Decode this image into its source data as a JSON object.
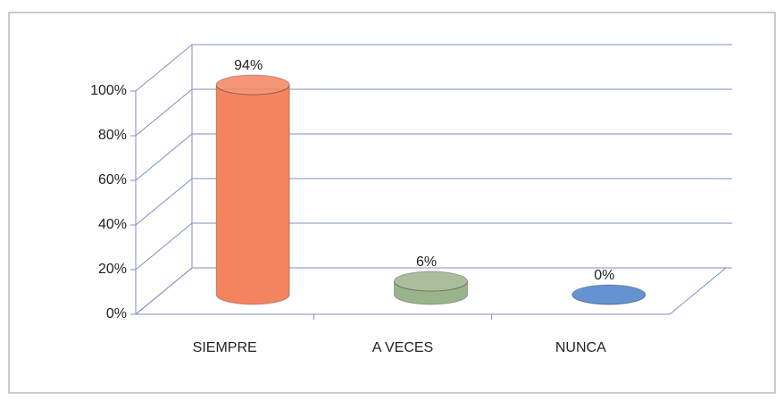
{
  "chart_data": {
    "type": "bar3d",
    "categories": [
      "SIEMPRE",
      "A VECES",
      "NUNCA"
    ],
    "values": [
      94,
      6,
      0
    ],
    "value_labels": [
      "94%",
      "6%",
      "0%"
    ],
    "colors": [
      "#f4845f",
      "#9bb38a",
      "#4a7fc9"
    ],
    "ylim": [
      0,
      100
    ],
    "yticks": [
      {
        "value": 0,
        "label": "0%"
      },
      {
        "value": 20,
        "label": "20%"
      },
      {
        "value": 40,
        "label": "40%"
      },
      {
        "value": 60,
        "label": "60%"
      },
      {
        "value": 80,
        "label": "80%"
      },
      {
        "value": 100,
        "label": "100%"
      }
    ],
    "grid": true
  }
}
